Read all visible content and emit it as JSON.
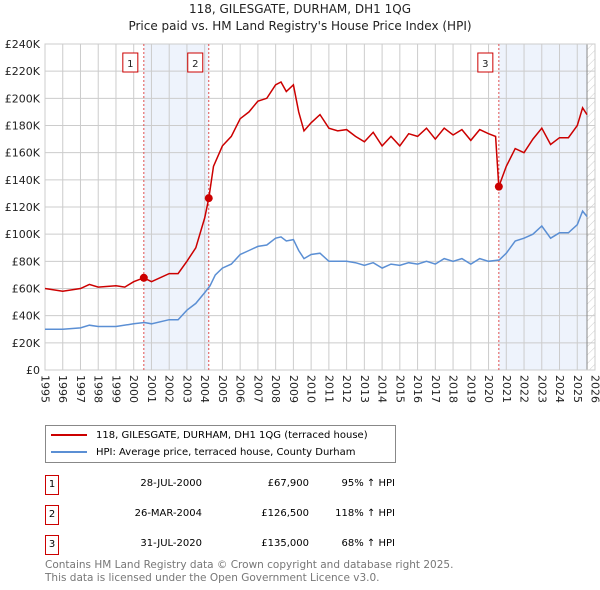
{
  "title": "118, GILESGATE, DURHAM, DH1 1QG",
  "subtitle": "Price paid vs. HM Land Registry's House Price Index (HPI)",
  "colors": {
    "property": "#cc0000",
    "hpi": "#5b8fd4",
    "shade": "#eef3fc",
    "grid": "#cccccc"
  },
  "chart_data": {
    "type": "line",
    "title": "118, GILESGATE, DURHAM, DH1 1QG",
    "xlim": [
      1995,
      2026
    ],
    "ylim": [
      0,
      240000
    ],
    "grid": true,
    "legend_placement": "below",
    "x_ticks": [
      "1995",
      "1996",
      "1997",
      "1998",
      "1999",
      "2000",
      "2001",
      "2002",
      "2003",
      "2004",
      "2005",
      "2006",
      "2007",
      "2008",
      "2009",
      "2010",
      "2011",
      "2012",
      "2013",
      "2014",
      "2015",
      "2016",
      "2017",
      "2018",
      "2019",
      "2020",
      "2021",
      "2022",
      "2023",
      "2024",
      "2025",
      "2026"
    ],
    "y_ticks": [
      {
        "value": 0,
        "label": "£0"
      },
      {
        "value": 20000,
        "label": "£20K"
      },
      {
        "value": 40000,
        "label": "£40K"
      },
      {
        "value": 60000,
        "label": "£60K"
      },
      {
        "value": 80000,
        "label": "£80K"
      },
      {
        "value": 100000,
        "label": "£100K"
      },
      {
        "value": 120000,
        "label": "£120K"
      },
      {
        "value": 140000,
        "label": "£140K"
      },
      {
        "value": 160000,
        "label": "£160K"
      },
      {
        "value": 180000,
        "label": "£180K"
      },
      {
        "value": 200000,
        "label": "£200K"
      },
      {
        "value": 220000,
        "label": "£220K"
      },
      {
        "value": 240000,
        "label": "£240K"
      }
    ],
    "series": [
      {
        "name": "118, GILESGATE, DURHAM, DH1 1QG (terraced house)",
        "color": "#cc0000",
        "x": [
          1995,
          1996,
          1997,
          1997.5,
          1998,
          1999,
          1999.5,
          2000,
          2000.57,
          2001,
          2002,
          2002.5,
          2003,
          2003.5,
          2004,
          2004.23,
          2004.5,
          2005,
          2005.5,
          2006,
          2006.5,
          2007,
          2007.5,
          2008,
          2008.3,
          2008.6,
          2009,
          2009.3,
          2009.6,
          2010,
          2010.5,
          2011,
          2011.5,
          2012,
          2012.5,
          2013,
          2013.5,
          2014,
          2014.5,
          2015,
          2015.5,
          2016,
          2016.5,
          2017,
          2017.5,
          2018,
          2018.5,
          2019,
          2019.5,
          2020,
          2020.4,
          2020.58,
          2021,
          2021.5,
          2022,
          2022.5,
          2023,
          2023.5,
          2024,
          2024.5,
          2025,
          2025.3,
          2025.55
        ],
        "y": [
          60000,
          58000,
          60000,
          63000,
          61000,
          62000,
          61000,
          65000,
          67900,
          65000,
          71000,
          71000,
          80000,
          90000,
          112000,
          126500,
          150000,
          165000,
          172000,
          185000,
          190000,
          198000,
          200000,
          210000,
          212000,
          205000,
          210000,
          190000,
          176000,
          182000,
          188000,
          178000,
          176000,
          177000,
          172000,
          168000,
          175000,
          165000,
          172000,
          165000,
          174000,
          172000,
          178000,
          170000,
          178000,
          173000,
          177000,
          169000,
          177000,
          174000,
          172000,
          135000,
          150000,
          163000,
          160000,
          170000,
          178000,
          166000,
          171000,
          171000,
          180000,
          193000,
          188000
        ]
      },
      {
        "name": "HPI: Average price, terraced house, County Durham",
        "color": "#5b8fd4",
        "x": [
          1995,
          1996,
          1997,
          1997.5,
          1998,
          1999,
          2000,
          2000.6,
          2001,
          2002,
          2002.5,
          2003,
          2003.5,
          2004,
          2004.3,
          2004.6,
          2005,
          2005.5,
          2006,
          2006.5,
          2007,
          2007.5,
          2008,
          2008.3,
          2008.6,
          2009,
          2009.3,
          2009.6,
          2010,
          2010.5,
          2011,
          2011.5,
          2012,
          2012.5,
          2013,
          2013.5,
          2014,
          2014.5,
          2015,
          2015.5,
          2016,
          2016.5,
          2017,
          2017.5,
          2018,
          2018.5,
          2019,
          2019.5,
          2020,
          2020.6,
          2021,
          2021.5,
          2022,
          2022.5,
          2023,
          2023.5,
          2024,
          2024.5,
          2025,
          2025.3,
          2025.55
        ],
        "y": [
          30000,
          30000,
          31000,
          33000,
          32000,
          32000,
          34000,
          35000,
          34000,
          37000,
          37000,
          44000,
          49000,
          57000,
          62000,
          70000,
          75000,
          78000,
          85000,
          88000,
          91000,
          92000,
          97000,
          98000,
          95000,
          96000,
          88000,
          82000,
          85000,
          86000,
          80000,
          80000,
          80000,
          79000,
          77000,
          79000,
          75000,
          78000,
          77000,
          79000,
          78000,
          80000,
          78000,
          82000,
          80000,
          82000,
          78000,
          82000,
          80000,
          81000,
          86000,
          95000,
          97000,
          100000,
          106000,
          97000,
          101000,
          101000,
          107000,
          117000,
          113000
        ]
      }
    ],
    "shaded_ranges": [
      [
        2000.57,
        2004.23
      ],
      [
        2020.58,
        2025.55
      ]
    ],
    "forecast_hatch_from": 2025.55,
    "annotations": [
      {
        "label": "1",
        "x": 2000.57,
        "y": 67900
      },
      {
        "label": "2",
        "x": 2004.23,
        "y": 126500
      },
      {
        "label": "3",
        "x": 2020.58,
        "y": 135000
      }
    ]
  },
  "legend": {
    "property": "118, GILESGATE, DURHAM, DH1 1QG (terraced house)",
    "hpi": "HPI: Average price, terraced house, County Durham"
  },
  "transactions": [
    {
      "num": "1",
      "date": "28-JUL-2000",
      "price": "£67,900",
      "hpi": "95% ↑ HPI"
    },
    {
      "num": "2",
      "date": "26-MAR-2004",
      "price": "£126,500",
      "hpi": "118% ↑ HPI"
    },
    {
      "num": "3",
      "date": "31-JUL-2020",
      "price": "£135,000",
      "hpi": "68% ↑ HPI"
    }
  ],
  "footer": {
    "line1": "Contains HM Land Registry data © Crown copyright and database right 2025.",
    "line2": "This data is licensed under the Open Government Licence v3.0."
  }
}
